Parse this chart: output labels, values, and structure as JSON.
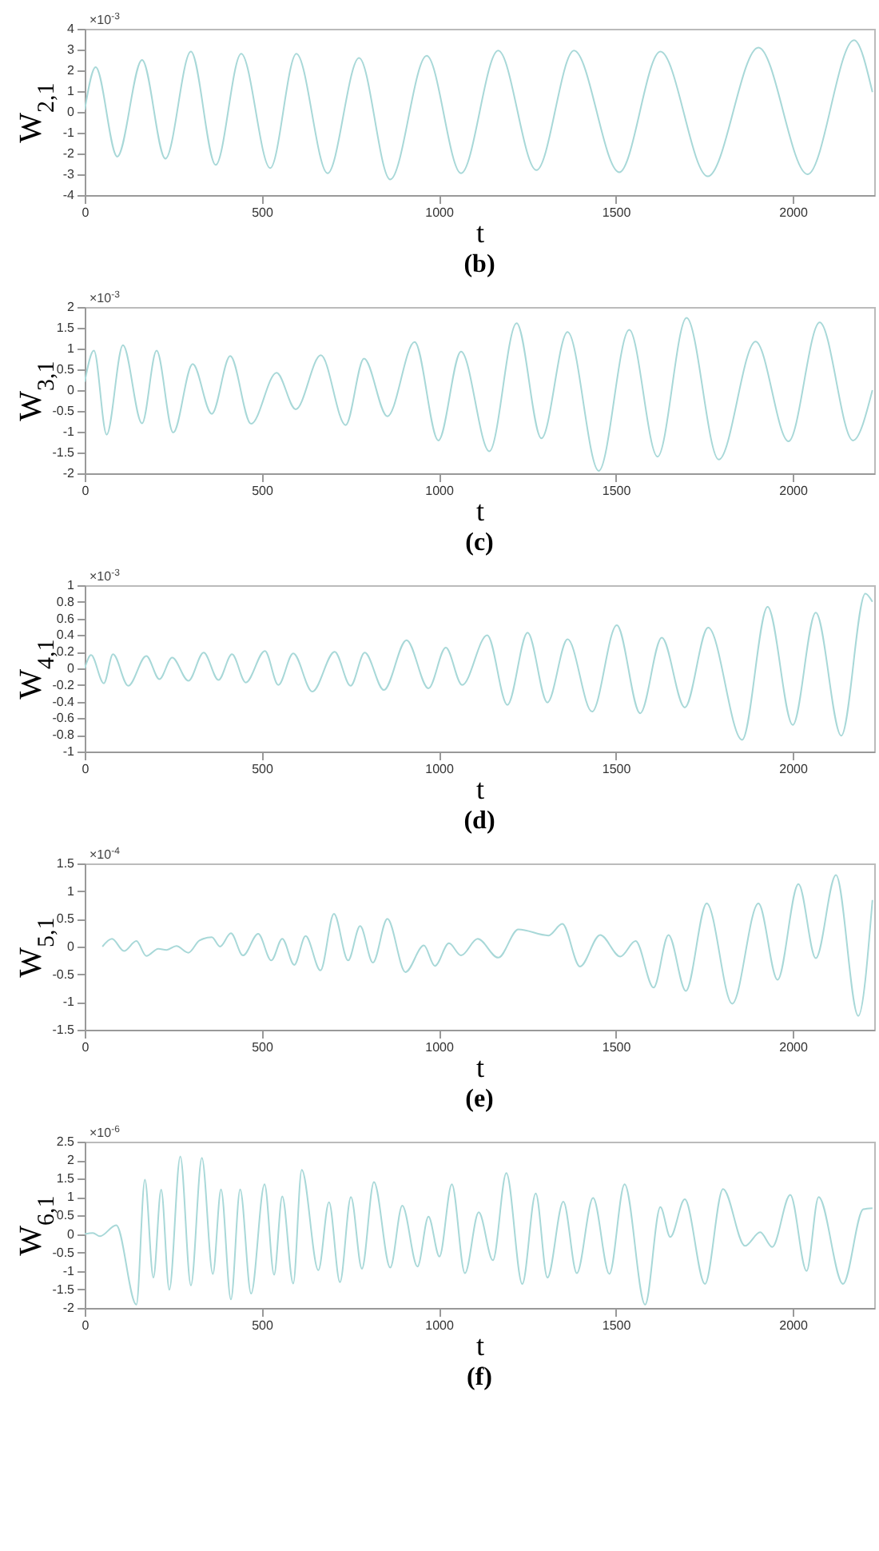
{
  "chart_data": [
    {
      "type": "line",
      "title": "(b)",
      "xlabel": "t",
      "ylabel": "W$_{2,1}$",
      "annotations": [
        "×10$^{-3}$"
      ],
      "xlim": [
        0,
        2230
      ],
      "xticks": [
        0,
        500,
        1000,
        1500,
        2000
      ],
      "ylim": [
        -4,
        4
      ],
      "yticks": [
        -4,
        -3,
        -2,
        -1,
        0,
        1,
        2,
        3,
        4
      ],
      "x": [
        0,
        31,
        92,
        162,
        228,
        300,
        370,
        442,
        524,
        598,
        686,
        775,
        863,
        966,
        1063,
        1168,
        1276,
        1382,
        1510,
        1626,
        1760,
        1903,
        2042,
        2173,
        2225
      ],
      "series": [
        {
          "color": "#a8d8d8",
          "values": [
            0.1,
            2.15,
            -2.15,
            2.5,
            -2.25,
            2.9,
            -2.55,
            2.8,
            -2.7,
            2.8,
            -2.95,
            2.6,
            -3.25,
            2.7,
            -2.95,
            2.95,
            -2.8,
            2.95,
            -2.9,
            2.9,
            -3.1,
            3.1,
            -3.0,
            3.45,
            0.95
          ]
        }
      ]
    },
    {
      "type": "line",
      "title": "(c)",
      "xlabel": "t",
      "ylabel": "W$_{3,1}$",
      "annotations": [
        "×10$^{-3}$"
      ],
      "xlim": [
        0,
        2230
      ],
      "xticks": [
        0,
        500,
        1000,
        1500,
        2000
      ],
      "ylim": [
        -2,
        2
      ],
      "yticks": [
        -2,
        -1.5,
        -1,
        -0.5,
        0,
        0.5,
        1,
        1.5,
        2
      ],
      "x": [
        0,
        26,
        62,
        108,
        162,
        203,
        250,
        305,
        359,
        411,
        470,
        542,
        596,
        667,
        737,
        789,
        855,
        932,
        999,
        1063,
        1143,
        1220,
        1290,
        1364,
        1452,
        1538,
        1618,
        1700,
        1791,
        1895,
        1988,
        2076,
        2170,
        2225
      ],
      "series": [
        {
          "color": "#a8d8d8",
          "values": [
            0.2,
            0.95,
            -1.07,
            1.08,
            -0.8,
            0.95,
            -1.02,
            0.63,
            -0.57,
            0.82,
            -0.81,
            0.42,
            -0.46,
            0.84,
            -0.84,
            0.76,
            -0.63,
            1.16,
            -1.21,
            0.93,
            -1.47,
            1.61,
            -1.16,
            1.4,
            -1.94,
            1.45,
            -1.6,
            1.74,
            -1.67,
            1.17,
            -1.23,
            1.63,
            -1.21,
            0
          ]
        }
      ]
    },
    {
      "type": "line",
      "title": "(d)",
      "xlabel": "t",
      "ylabel": "W$_{4,1}$",
      "annotations": [
        "×10$^{-3}$"
      ],
      "xlim": [
        0,
        2230
      ],
      "xticks": [
        0,
        500,
        1000,
        1500,
        2000
      ],
      "ylim": [
        -1,
        1
      ],
      "yticks": [
        -1,
        -0.8,
        -0.6,
        -0.4,
        -0.2,
        0,
        0.2,
        0.4,
        0.6,
        0.8,
        1
      ],
      "x": [
        0,
        18,
        54,
        80,
        123,
        174,
        211,
        247,
        293,
        336,
        378,
        416,
        455,
        509,
        547,
        589,
        643,
        706,
        751,
        791,
        845,
        909,
        971,
        1020,
        1066,
        1137,
        1194,
        1251,
        1307,
        1364,
        1433,
        1503,
        1569,
        1630,
        1695,
        1761,
        1857,
        1929,
        2000,
        2065,
        2137,
        2205,
        2225
      ],
      "series": [
        {
          "color": "#a8d8d8",
          "values": [
            0,
            0.16,
            -0.18,
            0.17,
            -0.21,
            0.15,
            -0.13,
            0.13,
            -0.15,
            0.19,
            -0.14,
            0.17,
            -0.17,
            0.21,
            -0.2,
            0.18,
            -0.28,
            0.2,
            -0.21,
            0.19,
            -0.26,
            0.34,
            -0.24,
            0.25,
            -0.2,
            0.4,
            -0.44,
            0.43,
            -0.41,
            0.35,
            -0.52,
            0.52,
            -0.54,
            0.37,
            -0.47,
            0.49,
            -0.86,
            0.74,
            -0.68,
            0.67,
            -0.81,
            0.9,
            0.8
          ]
        }
      ]
    },
    {
      "type": "line",
      "title": "(e)",
      "xlabel": "t",
      "ylabel": "W$_{5,1}$",
      "annotations": [
        "×10$^{-4}$"
      ],
      "xlim": [
        0,
        2230
      ],
      "xticks": [
        0,
        500,
        1000,
        1500,
        2000
      ],
      "ylim": [
        -1.5,
        1.5
      ],
      "yticks": [
        -1.5,
        -1,
        -0.5,
        0,
        0.5,
        1,
        1.5
      ],
      "x": [
        50,
        77,
        111,
        146,
        174,
        208,
        231,
        259,
        293,
        324,
        359,
        382,
        413,
        447,
        490,
        527,
        558,
        592,
        624,
        666,
        704,
        744,
        778,
        814,
        855,
        906,
        958,
        989,
        1029,
        1063,
        1110,
        1168,
        1225,
        1310,
        1349,
        1399,
        1456,
        1513,
        1556,
        1607,
        1649,
        1698,
        1757,
        1829,
        1903,
        1957,
        2016,
        2065,
        2122,
        2185,
        2225
      ],
      "series": [
        {
          "color": "#a8d8d8",
          "values": [
            0,
            0.14,
            -0.08,
            0.1,
            -0.17,
            -0.04,
            -0.06,
            0.01,
            -0.11,
            0.11,
            0.17,
            0,
            0.24,
            -0.16,
            0.23,
            -0.25,
            0.14,
            -0.33,
            0.19,
            -0.43,
            0.59,
            -0.25,
            0.37,
            -0.29,
            0.5,
            -0.46,
            0.02,
            -0.35,
            0.06,
            -0.16,
            0.14,
            -0.2,
            0.31,
            0.2,
            0.41,
            -0.36,
            0.21,
            -0.18,
            0.1,
            -0.74,
            0.21,
            -0.8,
            0.78,
            -1.03,
            0.78,
            -0.6,
            1.13,
            -0.21,
            1.29,
            -1.25,
            0.84
          ]
        }
      ]
    },
    {
      "type": "line",
      "title": "(f)",
      "xlabel": "t",
      "ylabel": "W$_{6,1}$",
      "annotations": [
        "×10$^{-6}$"
      ],
      "xlim": [
        0,
        2230
      ],
      "xticks": [
        0,
        500,
        1000,
        1500,
        2000
      ],
      "ylim": [
        -2,
        2.5
      ],
      "yticks": [
        -2,
        -1.5,
        -1,
        -0.5,
        0,
        0.5,
        1,
        1.5,
        2,
        2.5
      ],
      "x": [
        0,
        23,
        43,
        89,
        146,
        170,
        194,
        216,
        239,
        270,
        300,
        331,
        362,
        385,
        413,
        439,
        470,
        508,
        535,
        558,
        589,
        613,
        660,
        690,
        721,
        752,
        783,
        817,
        863,
        897,
        940,
        971,
        1002,
        1037,
        1074,
        1113,
        1153,
        1191,
        1236,
        1274,
        1307,
        1352,
        1390,
        1436,
        1482,
        1525,
        1583,
        1626,
        1654,
        1695,
        1752,
        1803,
        1865,
        1908,
        1942,
        1993,
        2039,
        2073,
        2142,
        2199,
        2225
      ],
      "series": [
        {
          "color": "#a8d8d8",
          "values": [
            0,
            0.03,
            -0.06,
            0.24,
            -1.91,
            1.47,
            -1.18,
            1.2,
            -1.51,
            2.1,
            -1.39,
            2.06,
            -1.08,
            1.21,
            -1.77,
            1.21,
            -1.61,
            1.35,
            -1.1,
            1.02,
            -1.34,
            1.74,
            -0.98,
            0.86,
            -1.3,
            1.0,
            -0.94,
            1.41,
            -0.91,
            0.77,
            -0.88,
            0.47,
            -0.61,
            1.35,
            -1.06,
            0.59,
            -0.71,
            1.65,
            -1.35,
            1.1,
            -1.18,
            0.88,
            -1.06,
            0.98,
            -1.08,
            1.35,
            -1.91,
            0.73,
            -0.08,
            0.94,
            -1.35,
            1.22,
            -0.32,
            0.05,
            -0.35,
            1.06,
            -1.0,
            1.0,
            -1.35,
            0.67,
            0.7
          ]
        }
      ]
    }
  ]
}
